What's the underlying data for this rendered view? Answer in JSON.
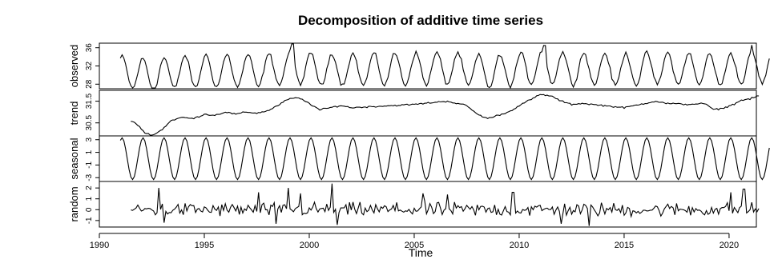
{
  "chart_data": {
    "type": "line",
    "title": "Decomposition of additive time series",
    "xlabel": "Time",
    "xlim": [
      1990,
      2021.3
    ],
    "x_ticks": [
      "1990",
      "1995",
      "2000",
      "2005",
      "2010",
      "2015",
      "2020"
    ],
    "frequency": 12,
    "panels": [
      {
        "name": "observed",
        "ylim": [
          27,
          37
        ],
        "y_ticks": [
          "28",
          "32",
          "36"
        ],
        "start": 1991.0,
        "end": 2021.92,
        "base": 32,
        "amplitude": 3.5,
        "noise": 0.7,
        "peaks": [
          [
            1999.2,
            36.9
          ],
          [
            2011.2,
            36.5
          ],
          [
            2021.1,
            36.6
          ]
        ]
      },
      {
        "name": "trend",
        "ylim": [
          29.9,
          32.0
        ],
        "y_ticks": [
          "30.5",
          "31.5"
        ],
        "start": 1991.5,
        "end": 2021.42,
        "knots": [
          [
            1991.5,
            30.6
          ],
          [
            1991.9,
            30.35
          ],
          [
            1992.2,
            30.0
          ],
          [
            1992.6,
            29.95
          ],
          [
            1993.0,
            30.2
          ],
          [
            1993.4,
            30.6
          ],
          [
            1993.9,
            30.75
          ],
          [
            1994.5,
            30.7
          ],
          [
            1995.0,
            30.9
          ],
          [
            1995.5,
            30.85
          ],
          [
            1996.0,
            31.0
          ],
          [
            1996.5,
            30.9
          ],
          [
            1997.0,
            31.0
          ],
          [
            1997.5,
            30.95
          ],
          [
            1998.0,
            31.05
          ],
          [
            1998.5,
            31.3
          ],
          [
            1999.0,
            31.6
          ],
          [
            1999.5,
            31.65
          ],
          [
            2000.0,
            31.4
          ],
          [
            2000.5,
            31.1
          ],
          [
            2001.0,
            31.2
          ],
          [
            2001.5,
            31.3
          ],
          [
            2002.0,
            31.2
          ],
          [
            2003.0,
            31.25
          ],
          [
            2004.0,
            31.3
          ],
          [
            2005.0,
            31.35
          ],
          [
            2006.0,
            31.45
          ],
          [
            2006.6,
            31.5
          ],
          [
            2007.0,
            31.4
          ],
          [
            2007.5,
            31.3
          ],
          [
            2008.0,
            30.9
          ],
          [
            2008.5,
            30.7
          ],
          [
            2009.0,
            30.85
          ],
          [
            2009.5,
            31.0
          ],
          [
            2010.0,
            31.3
          ],
          [
            2010.5,
            31.55
          ],
          [
            2011.0,
            31.8
          ],
          [
            2011.5,
            31.75
          ],
          [
            2012.0,
            31.5
          ],
          [
            2012.5,
            31.35
          ],
          [
            2013.0,
            31.4
          ],
          [
            2014.0,
            31.3
          ],
          [
            2015.0,
            31.2
          ],
          [
            2016.0,
            31.4
          ],
          [
            2016.5,
            31.5
          ],
          [
            2017.0,
            31.4
          ],
          [
            2018.0,
            31.35
          ],
          [
            2018.8,
            31.4
          ],
          [
            2019.3,
            31.1
          ],
          [
            2019.8,
            31.2
          ],
          [
            2020.2,
            31.35
          ],
          [
            2020.6,
            31.55
          ],
          [
            2021.0,
            31.6
          ],
          [
            2021.42,
            31.75
          ]
        ]
      },
      {
        "name": "seasonal",
        "ylim": [
          -3.6,
          3.6
        ],
        "y_ticks": [
          "-3",
          "-1",
          "1",
          "3"
        ],
        "start": 1991.0,
        "end": 2021.92,
        "amplitude": 3.3
      },
      {
        "name": "random",
        "ylim": [
          -1.6,
          2.6
        ],
        "y_ticks": [
          "-1",
          "0",
          "1",
          "2"
        ],
        "start": 1991.5,
        "end": 2021.42,
        "noise": 0.55,
        "spikes": [
          [
            1992.8,
            2.0
          ],
          [
            1993.1,
            -1.2
          ],
          [
            1997.6,
            1.6
          ],
          [
            1998.4,
            -1.3
          ],
          [
            1999.0,
            2.0
          ],
          [
            1999.6,
            1.5
          ],
          [
            2001.1,
            2.4
          ],
          [
            2001.3,
            -1.4
          ],
          [
            2005.4,
            1.5
          ],
          [
            2006.6,
            1.4
          ],
          [
            2009.7,
            1.6
          ],
          [
            2012.0,
            -1.3
          ],
          [
            2013.3,
            -1.5
          ],
          [
            2020.1,
            1.6
          ],
          [
            2020.7,
            1.9
          ]
        ]
      }
    ],
    "line_color": "#000000",
    "grid": false
  }
}
